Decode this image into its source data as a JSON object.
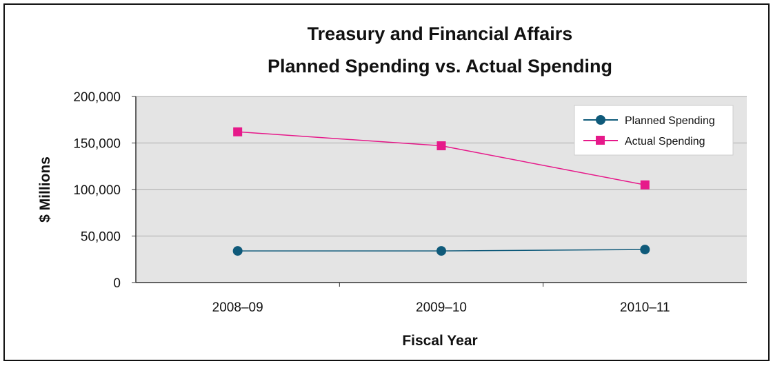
{
  "chart_data": {
    "type": "line",
    "title": "Treasury and Financial Affairs",
    "subtitle": "Planned Spending vs. Actual Spending",
    "xlabel": "Fiscal Year",
    "ylabel": "$ Millions",
    "categories": [
      "2008–09",
      "2009–10",
      "2010–11"
    ],
    "y_ticks": [
      "0",
      "50,000",
      "100,000",
      "150,000",
      "200,000"
    ],
    "y_tick_values": [
      0,
      50000,
      100000,
      150000,
      200000
    ],
    "ylim": [
      0,
      200000
    ],
    "grid": true,
    "legend_position": "top-right",
    "series": [
      {
        "name": "Planned Spending",
        "values": [
          34000,
          34000,
          35500
        ],
        "color": "#0f5a7a",
        "marker": "circle"
      },
      {
        "name": "Actual Spending",
        "values": [
          162000,
          147000,
          105000
        ],
        "color": "#e6198a",
        "marker": "square"
      }
    ]
  },
  "colors": {
    "plot_background": "#e4e4e4",
    "gridline": "#a9a9a9",
    "axis": "#333333",
    "frame": "#111111"
  }
}
